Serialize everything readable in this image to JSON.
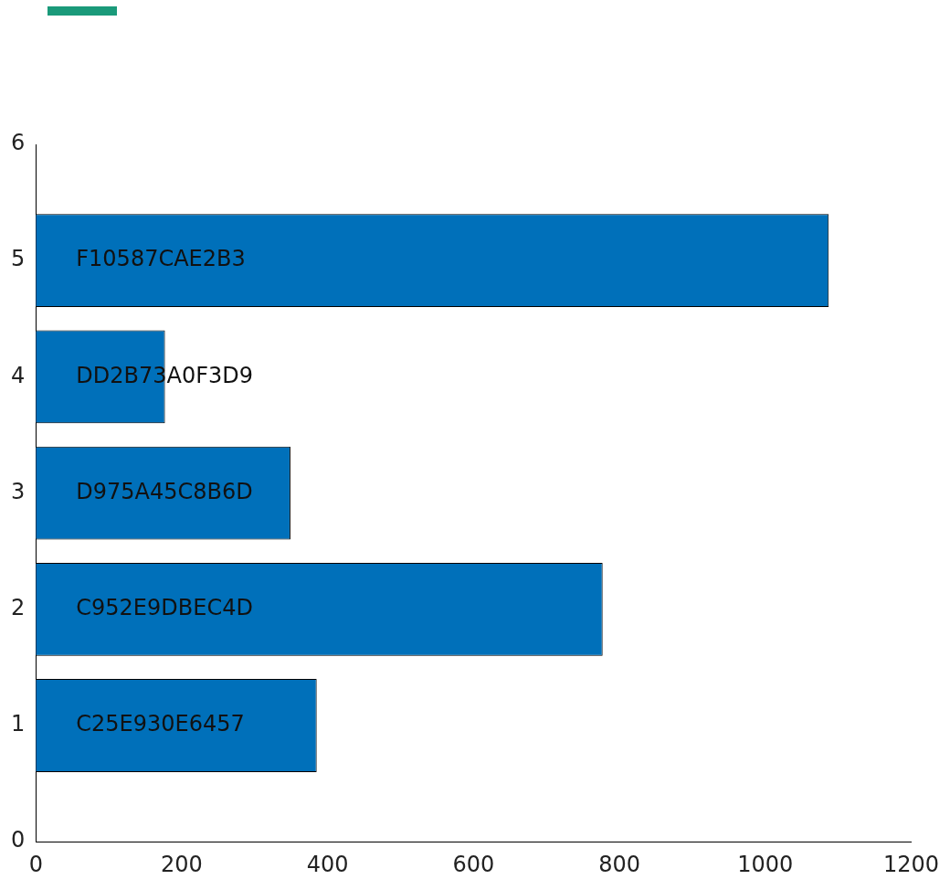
{
  "chart_data": {
    "type": "bar",
    "orientation": "horizontal",
    "x": [
      1,
      2,
      3,
      4,
      5
    ],
    "values": [
      385,
      777,
      349,
      177,
      1087
    ],
    "color": "#0070ba",
    "xlim": [
      0,
      1200
    ],
    "xticks": [
      0,
      200,
      400,
      600,
      800,
      1000,
      1200
    ],
    "ylim": [
      0,
      6
    ],
    "yticks": [
      0,
      1,
      2,
      3,
      4,
      5,
      6
    ],
    "grid": false,
    "legend": false,
    "annotations": [
      "C25E930E6457",
      "C952E9DBEC4D",
      "D975A45C8B6D",
      "DD2B73A0F3D9",
      "F10587CAE2B3"
    ]
  }
}
